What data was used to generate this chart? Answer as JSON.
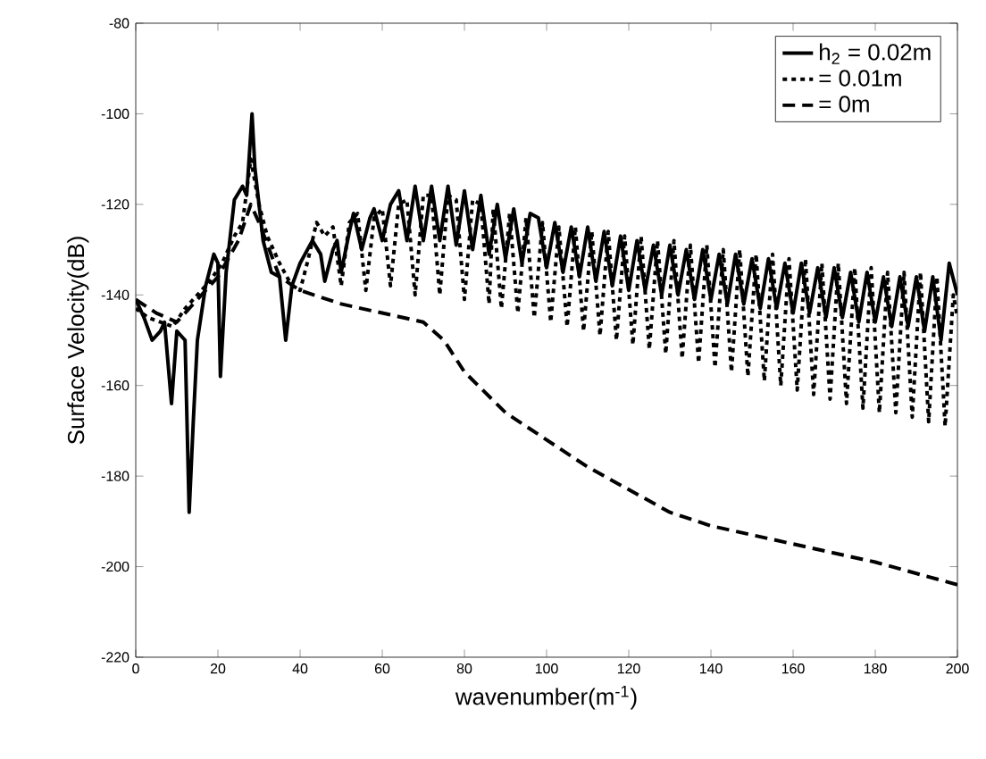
{
  "chart_data": {
    "type": "line",
    "xlabel": "wavenumber(m$^{-1}$)",
    "ylabel": "Surface Velocity(dB)",
    "xlim": [
      0,
      200
    ],
    "ylim": [
      -220,
      -80
    ],
    "xticks": [
      0,
      20,
      40,
      60,
      80,
      100,
      120,
      140,
      160,
      180,
      200
    ],
    "yticks": [
      -220,
      -200,
      -180,
      -160,
      -140,
      -120,
      -100,
      -80
    ],
    "grid": false,
    "legend": "top right",
    "marker": "none",
    "series": [
      {
        "name": "h$_{2}$ = 0.02m",
        "color": "#000000",
        "line_style": "solid",
        "x": [
          0,
          2,
          4,
          6,
          7,
          8.7,
          10,
          12,
          13,
          14,
          15,
          17,
          19,
          20,
          20.6,
          22,
          24,
          26,
          27,
          28.3,
          29,
          30,
          31,
          33,
          35,
          36.5,
          38,
          40,
          43,
          45,
          46,
          48,
          49,
          50,
          52,
          53,
          55,
          57,
          58,
          60,
          62,
          64,
          66,
          68,
          70,
          72,
          74,
          76,
          78,
          80,
          82,
          84,
          86,
          88,
          90,
          92,
          94,
          96,
          98,
          100,
          102,
          104,
          106,
          108,
          110,
          112,
          114,
          116,
          118,
          120,
          122,
          124,
          126,
          128,
          130,
          132,
          134,
          136,
          138,
          140,
          142,
          144,
          146,
          148,
          150,
          152,
          154,
          156,
          158,
          160,
          162,
          164,
          166,
          168,
          170,
          172,
          174,
          176,
          178,
          180,
          182,
          184,
          186,
          188,
          190,
          192,
          194,
          196,
          198,
          200
        ],
        "values": [
          -141,
          -145,
          -150,
          -148,
          -146,
          -164,
          -148,
          -150,
          -188,
          -168,
          -150,
          -138,
          -131,
          -133,
          -158,
          -135,
          -119,
          -116,
          -118,
          -100,
          -112,
          -120,
          -128,
          -135,
          -136,
          -150,
          -138,
          -133,
          -128,
          -131,
          -137,
          -130,
          -128,
          -135,
          -126,
          -122,
          -130,
          -123,
          -121,
          -128,
          -120,
          -117,
          -128,
          -116,
          -128,
          -116,
          -128,
          -116,
          -129,
          -117,
          -130,
          -118,
          -131,
          -120,
          -132,
          -121,
          -133,
          -122,
          -123,
          -134,
          -124,
          -135,
          -125,
          -136,
          -125,
          -137,
          -126,
          -138,
          -127,
          -139,
          -128,
          -139,
          -129,
          -140,
          -129,
          -140,
          -130,
          -141,
          -130,
          -141,
          -131,
          -142,
          -131,
          -142,
          -132,
          -143,
          -132,
          -143,
          -133,
          -144,
          -133,
          -144,
          -134,
          -145,
          -134,
          -145,
          -135,
          -146,
          -135,
          -146,
          -136,
          -147,
          -136,
          -147,
          -136,
          -148,
          -136,
          -150,
          -133,
          -140
        ]
      },
      {
        "name": "= 0.01m",
        "color": "#000000",
        "line_style": "dotted",
        "x": [
          0,
          3,
          6,
          9,
          12,
          15,
          18,
          21,
          24,
          26,
          28,
          30,
          32,
          35,
          38,
          40,
          42,
          44,
          46,
          48,
          50,
          52,
          54,
          56,
          58,
          60,
          62,
          64,
          66,
          68,
          70,
          72,
          74,
          76,
          78,
          80,
          82,
          84,
          86,
          87,
          89,
          91,
          93,
          95,
          97,
          99,
          101,
          103,
          105,
          107,
          109,
          111,
          113,
          115,
          117,
          119,
          121,
          123,
          125,
          127,
          129,
          131,
          133,
          135,
          137,
          139,
          141,
          143,
          145,
          147,
          149,
          151,
          153,
          155,
          157,
          159,
          161,
          163,
          165,
          167,
          169,
          171,
          173,
          175,
          177,
          179,
          181,
          183,
          185,
          187,
          189,
          191,
          193,
          195,
          197,
          199,
          200
        ],
        "values": [
          -143,
          -145,
          -146,
          -147,
          -143,
          -140,
          -137,
          -133,
          -127,
          -124,
          -110,
          -120,
          -127,
          -133,
          -138,
          -139,
          -132,
          -124,
          -127,
          -125,
          -138,
          -124,
          -122,
          -139,
          -123,
          -121,
          -138,
          -120,
          -119,
          -140,
          -118,
          -118,
          -140,
          -118,
          -119,
          -141,
          -119,
          -120,
          -142,
          -121,
          -143,
          -122,
          -144,
          -123,
          -145,
          -124,
          -146,
          -125,
          -147,
          -125,
          -148,
          -126,
          -149,
          -126,
          -150,
          -127,
          -151,
          -127,
          -152,
          -128,
          -153,
          -128,
          -154,
          -129,
          -155,
          -129,
          -156,
          -130,
          -157,
          -130,
          -158,
          -131,
          -159,
          -131,
          -160,
          -132,
          -161,
          -132,
          -162,
          -133,
          -163,
          -133,
          -164,
          -134,
          -165,
          -134,
          -166,
          -135,
          -166,
          -135,
          -167,
          -135,
          -168,
          -136,
          -169,
          -140,
          -145
        ]
      },
      {
        "name": "= 0m",
        "color": "#000000",
        "line_style": "dashed",
        "x": [
          0,
          5,
          10,
          15,
          20,
          25,
          28,
          30,
          35,
          40,
          50,
          60,
          70,
          75,
          80,
          90,
          100,
          110,
          120,
          130,
          140,
          160,
          180,
          200
        ],
        "values": [
          -141,
          -144,
          -146,
          -141,
          -136,
          -128,
          -120,
          -124,
          -136,
          -139,
          -142,
          -144,
          -146,
          -150,
          -157,
          -166,
          -172,
          -178,
          -183,
          -188,
          -191,
          -195,
          -199,
          -204
        ]
      }
    ]
  }
}
